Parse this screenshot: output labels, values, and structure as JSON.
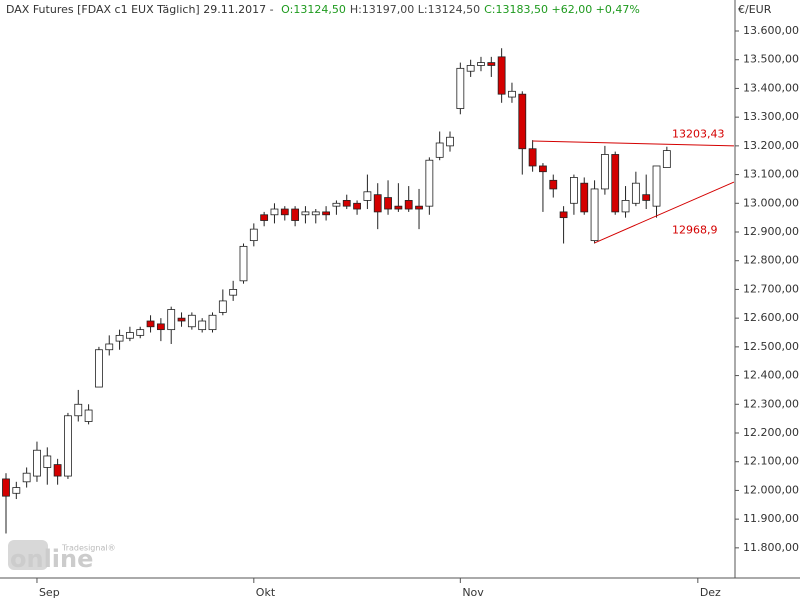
{
  "chart_data": {
    "type": "candlestick",
    "title": "DAX Futures [FDAX c1 EUX  Täglich] 29.11.2017 -",
    "quote": [
      {
        "text": "O:13124,50",
        "color": "#1e9a1e"
      },
      {
        "text": "H:13197,00 L:13124,50",
        "color": "#444444"
      },
      {
        "text": "C:13183,50 +62,00 +0,47%",
        "color": "#1e9a1e"
      }
    ],
    "y_label": "€/EUR",
    "watermark": "online",
    "watermark_sub": "Tradesignal®",
    "up_color": "#ffffff",
    "down_color": "#d40000",
    "line_color": "#d40000",
    "x": [
      0,
      1,
      2,
      3,
      4,
      5,
      6,
      7,
      8,
      9,
      10,
      11,
      12,
      13,
      14,
      15,
      16,
      17,
      18,
      19,
      20,
      21,
      22,
      23,
      24,
      25,
      26,
      27,
      28,
      29,
      30,
      31,
      32,
      33,
      34,
      35,
      36,
      37,
      38,
      39,
      40,
      41,
      42,
      43,
      44,
      45,
      46,
      47,
      48,
      49,
      50,
      51,
      52,
      53,
      54,
      55,
      56,
      57,
      58,
      59,
      60,
      61,
      62,
      63,
      64
    ],
    "open": [
      12040,
      11990,
      12030,
      12050,
      12080,
      12090,
      12050,
      12260,
      12240,
      12360,
      12490,
      12520,
      12530,
      12540,
      12590,
      12580,
      12560,
      12600,
      12570,
      12560,
      12560,
      12620,
      12680,
      12730,
      12870,
      12960,
      12960,
      12980,
      12980,
      12960,
      12960,
      12970,
      12990,
      13010,
      13000,
      13010,
      13030,
      13020,
      12990,
      13010,
      12990,
      12990,
      13160,
      13200,
      13330,
      13460,
      13480,
      13490,
      13510,
      13370,
      13380,
      13190,
      13130,
      13080,
      12970,
      13000,
      13070,
      12870,
      13050,
      13170,
      12970,
      13000,
      13030,
      12990,
      13124.5
    ],
    "high": [
      12060,
      12030,
      12080,
      12170,
      12150,
      12110,
      12270,
      12350,
      12300,
      12500,
      12540,
      12560,
      12570,
      12570,
      12610,
      12600,
      12640,
      12620,
      12620,
      12600,
      12620,
      12700,
      12730,
      12860,
      12930,
      12970,
      13000,
      12990,
      12990,
      12990,
      12980,
      12990,
      13010,
      13030,
      13010,
      13100,
      13070,
      13080,
      13070,
      13060,
      13050,
      13160,
      13250,
      13250,
      13490,
      13500,
      13510,
      13510,
      13540,
      13420,
      13390,
      13220,
      13140,
      13100,
      12990,
      13100,
      13090,
      13080,
      13200,
      13180,
      13060,
      13110,
      13100,
      13130,
      13197
    ],
    "low": [
      11850,
      11970,
      12010,
      12030,
      12020,
      12020,
      12040,
      12240,
      12230,
      12360,
      12470,
      12490,
      12520,
      12530,
      12550,
      12520,
      12510,
      12570,
      12560,
      12550,
      12550,
      12610,
      12660,
      12720,
      12850,
      12920,
      12930,
      12940,
      12920,
      12930,
      12930,
      12940,
      12960,
      12980,
      12960,
      12980,
      12910,
      12960,
      12970,
      12970,
      12910,
      12960,
      13150,
      13180,
      13310,
      13440,
      13460,
      13440,
      13350,
      13350,
      13100,
      13110,
      12970,
      13020,
      12860,
      12960,
      12960,
      12860,
      13030,
      12960,
      12950,
      12990,
      12980,
      12950,
      13124.5
    ],
    "close": [
      11980,
      12010,
      12060,
      12140,
      12120,
      12050,
      12260,
      12300,
      12280,
      12490,
      12510,
      12540,
      12550,
      12560,
      12570,
      12560,
      12630,
      12590,
      12610,
      12590,
      12610,
      12660,
      12700,
      12850,
      12910,
      12940,
      12980,
      12960,
      12940,
      12970,
      12970,
      12960,
      13000,
      12990,
      12980,
      13040,
      12970,
      12980,
      12980,
      12980,
      12980,
      13150,
      13210,
      13230,
      13470,
      13480,
      13490,
      13480,
      13380,
      13390,
      13190,
      13130,
      13110,
      13050,
      12950,
      13090,
      12970,
      13050,
      13170,
      12970,
      13010,
      13070,
      13010,
      13130,
      13183.5
    ],
    "lines": [
      {
        "x": [
          51,
          70.5
        ],
        "y": [
          13217,
          13200
        ],
        "label": "13203,43"
      },
      {
        "x": [
          57,
          70.5
        ],
        "y": [
          12862,
          13074
        ],
        "label": "12968,9"
      }
    ],
    "xlim": [
      -0.58,
      70.6
    ],
    "xticks": [
      {
        "value": 3,
        "label": "Sep"
      },
      {
        "value": 24,
        "label": "Okt"
      },
      {
        "value": 44,
        "label": "Nov"
      },
      {
        "value": 67,
        "label": "Dez"
      }
    ],
    "ylim": [
      11695,
      13708
    ],
    "yticks": [
      {
        "value": 11800,
        "label": "11.800,00"
      },
      {
        "value": 11900,
        "label": "11.900,00"
      },
      {
        "value": 12000,
        "label": "12.000,00"
      },
      {
        "value": 12100,
        "label": "12.100,00"
      },
      {
        "value": 12200,
        "label": "12.200,00"
      },
      {
        "value": 12300,
        "label": "12.300,00"
      },
      {
        "value": 12400,
        "label": "12.400,00"
      },
      {
        "value": 12500,
        "label": "12.500,00"
      },
      {
        "value": 12600,
        "label": "12.600,00"
      },
      {
        "value": 12700,
        "label": "12.700,00"
      },
      {
        "value": 12800,
        "label": "12.800,00"
      },
      {
        "value": 12900,
        "label": "12.900,00"
      },
      {
        "value": 13000,
        "label": "13.000,00"
      },
      {
        "value": 13100,
        "label": "13.100,00"
      },
      {
        "value": 13200,
        "label": "13.200,00"
      },
      {
        "value": 13300,
        "label": "13.300,00"
      },
      {
        "value": 13400,
        "label": "13.400,00"
      },
      {
        "value": 13500,
        "label": "13.500,00"
      },
      {
        "value": 13600,
        "label": "13.600,00"
      }
    ],
    "grid": false
  }
}
